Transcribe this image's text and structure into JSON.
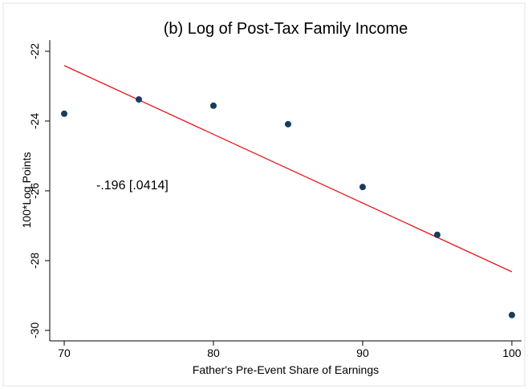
{
  "chart_data": {
    "type": "scatter",
    "title": "(b) Log of Post-Tax Family Income",
    "xlabel": "Father's Pre-Event Share of Earnings",
    "ylabel": "100*Log Points",
    "annotation": "-.196 [.0414]",
    "annotation_color": "#1f1fe0",
    "x": [
      70,
      75,
      80,
      85,
      90,
      95,
      100
    ],
    "values": [
      -23.79,
      -23.38,
      -23.56,
      -24.09,
      -25.89,
      -27.26,
      -29.56
    ],
    "color": "#1a3b5c",
    "fit": {
      "x": [
        70,
        100
      ],
      "values": [
        -22.41,
        -28.32
      ],
      "color": "#e8161b"
    },
    "xlim": [
      69.03,
      100.65
    ],
    "xticks": [
      70,
      80,
      90,
      100
    ],
    "ylim": [
      -30.3,
      -21.68
    ],
    "yticks": [
      -22,
      -24,
      -26,
      -28,
      -30
    ],
    "grid": false
  }
}
